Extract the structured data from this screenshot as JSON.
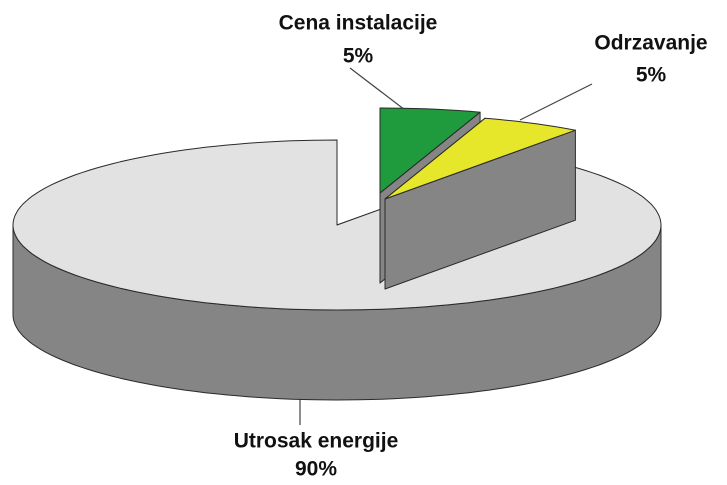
{
  "chart_data": {
    "type": "pie",
    "categories": [
      "Cena instalacije",
      "Odrzavanje",
      "Utrosak energije"
    ],
    "values": [
      5,
      5,
      90
    ],
    "value_labels": [
      "5%",
      "5%",
      "90%"
    ],
    "colors": [
      "#1f9a3c",
      "#e6e62a",
      "#e2e2e2"
    ]
  }
}
